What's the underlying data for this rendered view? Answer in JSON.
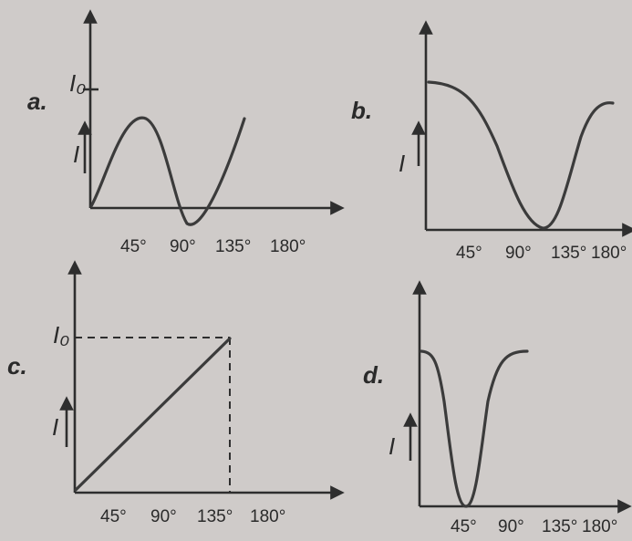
{
  "panels": [
    {
      "letter": "a.",
      "y_label": "I",
      "ref_label": "I₀",
      "ticks": [
        "45°",
        "90°",
        "135°",
        "180°"
      ]
    },
    {
      "letter": "b.",
      "y_label": "I",
      "ticks": [
        "45°",
        "90°",
        "135°",
        "180°"
      ]
    },
    {
      "letter": "c.",
      "y_label": "I",
      "ref_label": "I₀",
      "ticks": [
        "45°",
        "90°",
        "135°",
        "180°"
      ]
    },
    {
      "letter": "d.",
      "y_label": "I",
      "ticks": [
        "45°",
        "90°",
        "135°",
        "180°"
      ]
    }
  ],
  "colors": {
    "paper": "#cfcbc9",
    "ink": "#2e2e2e"
  }
}
